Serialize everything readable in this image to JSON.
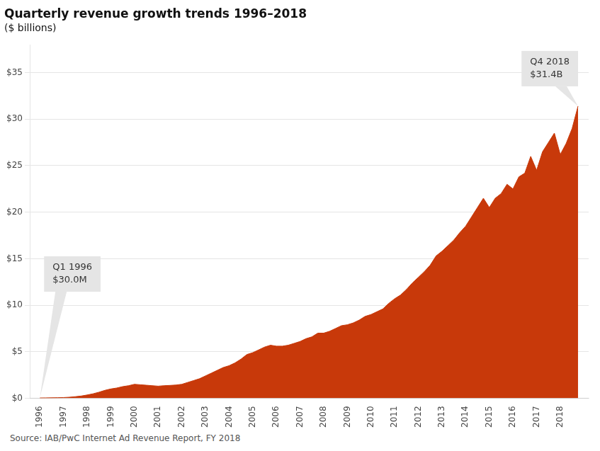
{
  "chart_data": {
    "type": "area",
    "title": "Quarterly revenue growth trends 1996–2018",
    "subtitle": "($ billions)",
    "source": "Source: IAB/PwC Internet Ad Revenue Report,  FY 2018",
    "color": "#C8390A",
    "grid": "y",
    "x": [
      1996,
      1996.25,
      1996.5,
      1996.75,
      1997,
      1997.25,
      1997.5,
      1997.75,
      1998,
      1998.25,
      1998.5,
      1998.75,
      1999,
      1999.25,
      1999.5,
      1999.75,
      2000,
      2000.25,
      2000.5,
      2000.75,
      2001,
      2001.25,
      2001.5,
      2001.75,
      2002,
      2002.25,
      2002.5,
      2002.75,
      2003,
      2003.25,
      2003.5,
      2003.75,
      2004,
      2004.25,
      2004.5,
      2004.75,
      2005,
      2005.25,
      2005.5,
      2005.75,
      2006,
      2006.25,
      2006.5,
      2006.75,
      2007,
      2007.25,
      2007.5,
      2007.75,
      2008,
      2008.25,
      2008.5,
      2008.75,
      2009,
      2009.25,
      2009.5,
      2009.75,
      2010,
      2010.25,
      2010.5,
      2010.75,
      2011,
      2011.25,
      2011.5,
      2011.75,
      2012,
      2012.25,
      2012.5,
      2012.75,
      2013,
      2013.25,
      2013.5,
      2013.75,
      2014,
      2014.25,
      2014.5,
      2014.75,
      2015,
      2015.25,
      2015.5,
      2015.75,
      2016,
      2016.25,
      2016.5,
      2016.75,
      2017,
      2017.25,
      2017.5,
      2017.75,
      2018,
      2018.25,
      2018.5,
      2018.75
    ],
    "values": [
      0.03,
      0.038,
      0.048,
      0.06,
      0.075,
      0.11,
      0.17,
      0.24,
      0.35,
      0.48,
      0.65,
      0.85,
      1.0,
      1.1,
      1.25,
      1.35,
      1.5,
      1.45,
      1.4,
      1.35,
      1.3,
      1.35,
      1.38,
      1.42,
      1.5,
      1.7,
      1.9,
      2.1,
      2.4,
      2.7,
      3.0,
      3.3,
      3.5,
      3.8,
      4.2,
      4.7,
      4.9,
      5.2,
      5.5,
      5.7,
      5.6,
      5.6,
      5.7,
      5.9,
      6.1,
      6.4,
      6.6,
      7.0,
      7.0,
      7.2,
      7.5,
      7.8,
      7.9,
      8.1,
      8.4,
      8.8,
      9.0,
      9.3,
      9.6,
      10.2,
      10.7,
      11.1,
      11.7,
      12.4,
      13.0,
      13.6,
      14.3,
      15.3,
      15.8,
      16.4,
      17.0,
      17.8,
      18.5,
      19.5,
      20.5,
      21.5,
      20.5,
      21.5,
      22.0,
      23.0,
      22.5,
      23.8,
      24.2,
      26.0,
      24.5,
      26.5,
      27.5,
      28.5,
      26.2,
      27.4,
      29.0,
      31.4
    ],
    "xlim": [
      1995.6,
      2019.2
    ],
    "xticks": [
      1996,
      1997,
      1998,
      1999,
      2000,
      2001,
      2002,
      2003,
      2004,
      2005,
      2006,
      2007,
      2008,
      2009,
      2010,
      2011,
      2012,
      2013,
      2014,
      2015,
      2016,
      2017,
      2018
    ],
    "ylim": [
      0,
      38
    ],
    "yticks": [
      {
        "value": 0,
        "label": "$0"
      },
      {
        "value": 5,
        "label": "$5"
      },
      {
        "value": 10,
        "label": "$10"
      },
      {
        "value": 15,
        "label": "$15"
      },
      {
        "value": 20,
        "label": "$20"
      },
      {
        "value": 25,
        "label": "$25"
      },
      {
        "value": 30,
        "label": "$30"
      },
      {
        "value": 35,
        "label": "$35"
      }
    ],
    "annotations": [
      {
        "text": [
          "Q1 1996",
          "$30.0M"
        ],
        "x": 1996,
        "y": 0.03,
        "color": "#E5E5E5"
      },
      {
        "text": [
          "Q4 2018",
          "$31.4B"
        ],
        "x": 2018.75,
        "y": 31.4,
        "color": "#E5E5E5"
      }
    ]
  }
}
